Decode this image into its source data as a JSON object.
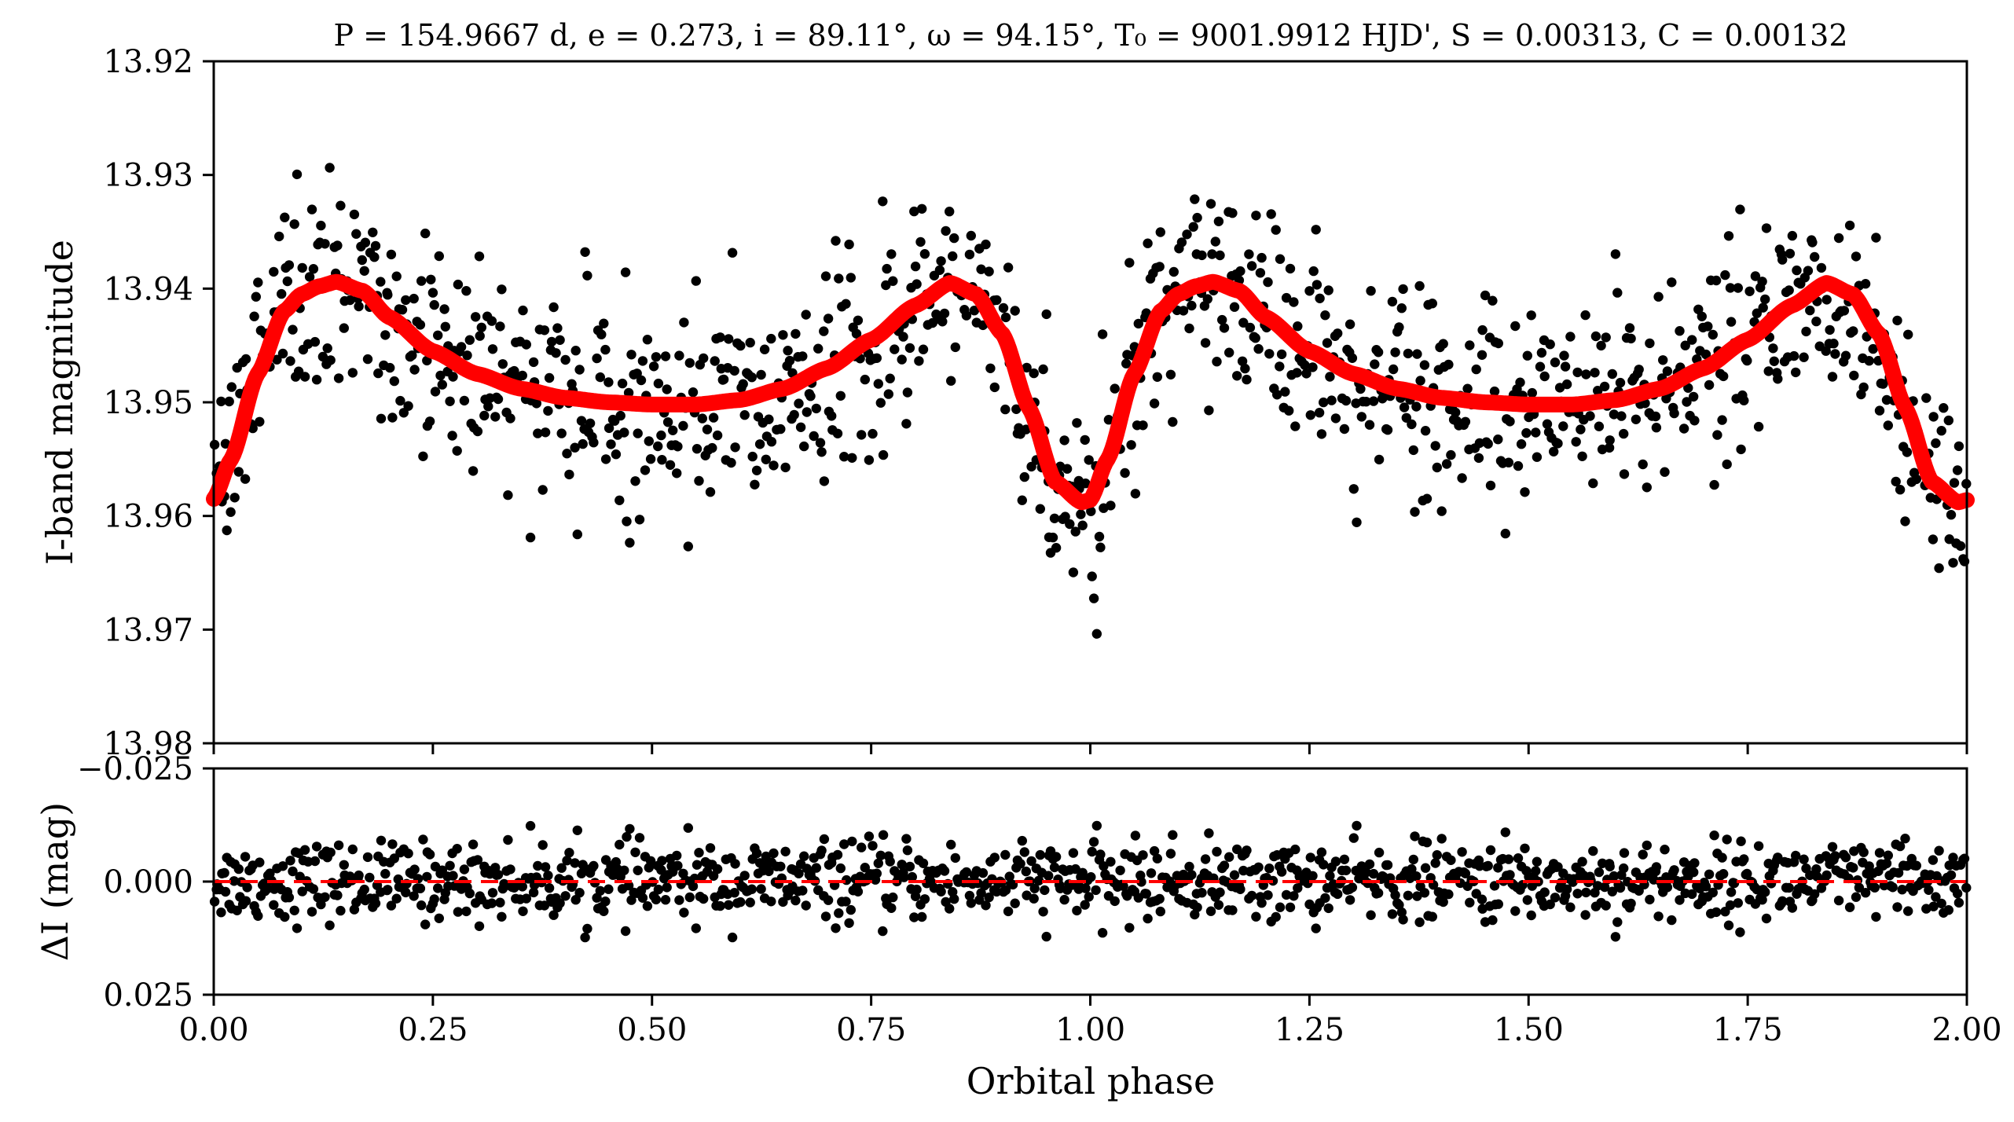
{
  "figure": {
    "title": "P = 154.9667 d, e = 0.273, i = 89.11°, ω = 94.15°, T₀ = 9001.9912 HJD', S = 0.00313, C = 0.00132",
    "colors": {
      "model": "#ff0000",
      "points": "#000000",
      "zero_line": "#ff0000"
    }
  },
  "chart_data": [
    {
      "name": "light_curve",
      "type": "scatter",
      "overlay": "line",
      "xlabel": "",
      "ylabel": "I-band magnitude",
      "xlim": [
        0.0,
        2.0
      ],
      "ylim": [
        13.98,
        13.92
      ],
      "y_inverted": true,
      "yticks": [
        13.92,
        13.93,
        13.94,
        13.95,
        13.96,
        13.97,
        13.98
      ],
      "ytick_labels": [
        "13.92",
        "13.93",
        "13.94",
        "13.95",
        "13.96",
        "13.97",
        "13.98"
      ],
      "xticks": [
        0.0,
        0.25,
        0.5,
        0.75,
        1.0,
        1.25,
        1.5,
        1.75,
        2.0
      ],
      "model": {
        "x": [
          0.0,
          0.02,
          0.05,
          0.08,
          0.1,
          0.12,
          0.14,
          0.17,
          0.2,
          0.25,
          0.3,
          0.35,
          0.4,
          0.45,
          0.5,
          0.55,
          0.6,
          0.65,
          0.7,
          0.75,
          0.8,
          0.84,
          0.87,
          0.9,
          0.93,
          0.96,
          0.99,
          1.0,
          1.02,
          1.05,
          1.08,
          1.1,
          1.12,
          1.14,
          1.17,
          1.2,
          1.25,
          1.3,
          1.35,
          1.4,
          1.45,
          1.5,
          1.55,
          1.6,
          1.65,
          1.7,
          1.75,
          1.8,
          1.84,
          1.87,
          1.9,
          1.93,
          1.96,
          1.99,
          2.0
        ],
        "y": [
          13.9585,
          13.955,
          13.9475,
          13.942,
          13.9405,
          13.9398,
          13.9394,
          13.9402,
          13.9425,
          13.9455,
          13.9475,
          13.9488,
          13.9496,
          13.95,
          13.9502,
          13.9502,
          13.9498,
          13.9488,
          13.947,
          13.9445,
          13.9415,
          13.9395,
          13.9405,
          13.944,
          13.9505,
          13.957,
          13.9588,
          13.9586,
          13.955,
          13.9475,
          13.942,
          13.9405,
          13.9398,
          13.9394,
          13.9402,
          13.9425,
          13.9455,
          13.9475,
          13.9488,
          13.9496,
          13.95,
          13.9502,
          13.9502,
          13.9498,
          13.9488,
          13.947,
          13.9445,
          13.9415,
          13.9395,
          13.9405,
          13.944,
          13.9505,
          13.957,
          13.9588,
          13.9586
        ]
      },
      "points": {
        "n": 1100,
        "scatter_sigma_mag": 0.0045,
        "description_note": ""
      }
    },
    {
      "name": "residuals",
      "type": "scatter",
      "xlabel": "Orbital phase",
      "ylabel": "ΔI (mag)",
      "xlim": [
        0.0,
        2.0
      ],
      "ylim": [
        0.025,
        -0.025
      ],
      "y_inverted": true,
      "yticks": [
        -0.025,
        0.0,
        0.025
      ],
      "ytick_labels": [
        "−0.025",
        "0.000",
        "0.025"
      ],
      "xticks": [
        0.0,
        0.25,
        0.5,
        0.75,
        1.0,
        1.25,
        1.5,
        1.75,
        2.0
      ],
      "xtick_labels": [
        "0.00",
        "0.25",
        "0.50",
        "0.75",
        "1.00",
        "1.25",
        "1.50",
        "1.75",
        "2.00"
      ],
      "zero_line": 0.0,
      "points": {
        "n": 1100,
        "scatter_sigma_mag": 0.0045
      }
    }
  ]
}
